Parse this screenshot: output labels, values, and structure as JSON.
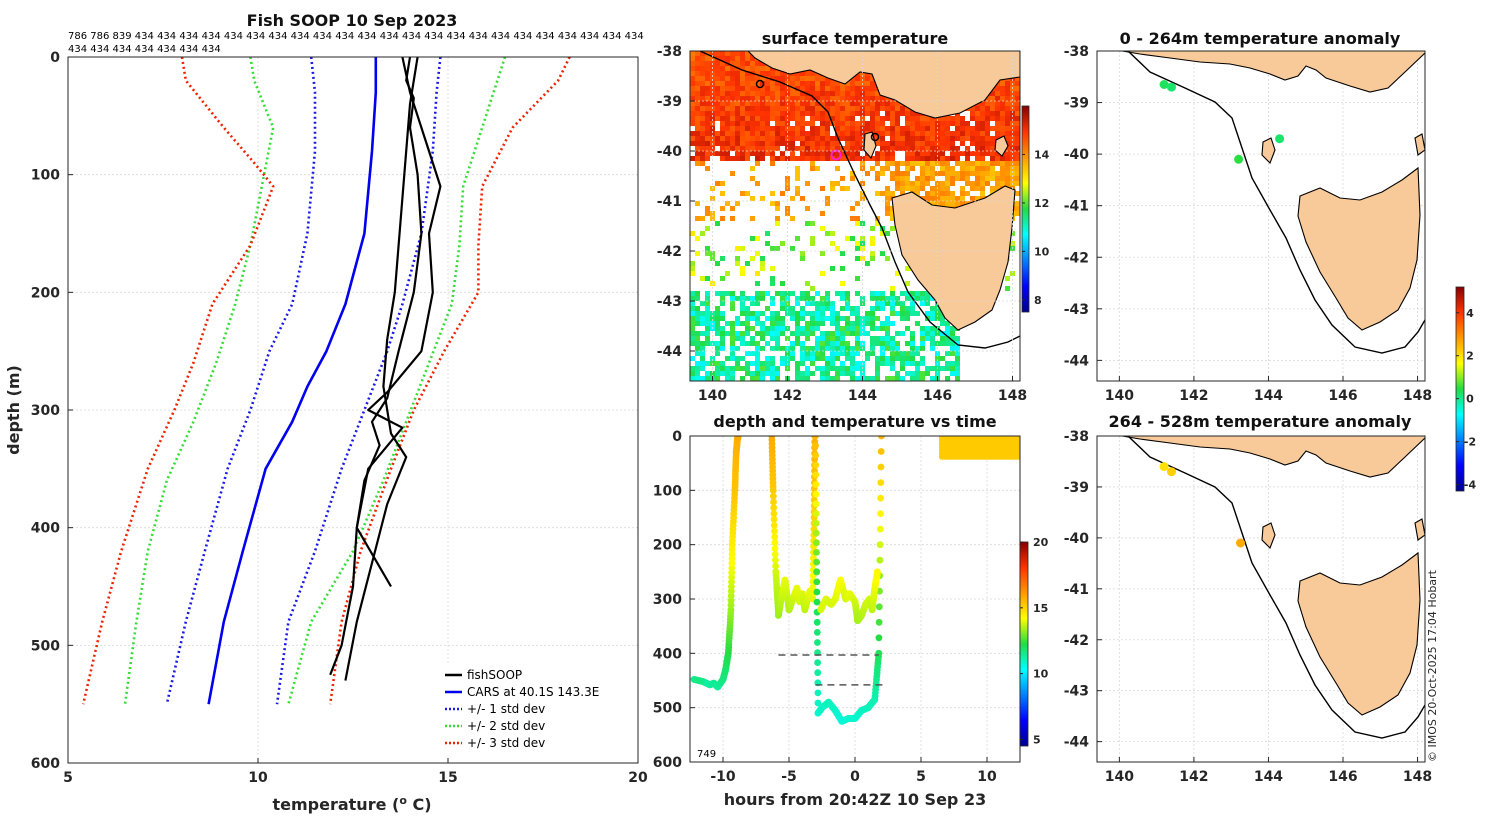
{
  "figure": {
    "credit": "© IMOS 20-Oct-2025 17:04 Hobart"
  },
  "chart_data": [
    {
      "id": "profile",
      "type": "line",
      "title": "Fish SOOP 10 Sep 2023",
      "count_labels_line1": "786 786 839 434 434 434 434 434 434 434 434 434 434 434 434 434 434 434 434 434 434 434 434 434 434 434",
      "count_labels_line2": "434 434 434 434 434 434 434",
      "xlabel": "temperature (",
      "xlabel_sup": "o",
      "xlabel_end": " C)",
      "ylabel": "depth (m)",
      "xlim": [
        5,
        20
      ],
      "ylim": [
        600,
        0
      ],
      "xticks": [
        "5",
        "10",
        "15",
        "20"
      ],
      "yticks": [
        "0",
        "100",
        "200",
        "300",
        "400",
        "500",
        "600"
      ],
      "legend": [
        "fishSOOP",
        "CARS at 40.1S 143.3E",
        "+/- 1 std dev",
        "+/- 2 std dev",
        "+/- 3 std dev"
      ],
      "colors": {
        "fishsoop": "#000000",
        "cars": "#0000ee",
        "std1": "#1a1ae6",
        "std2": "#33dd33",
        "std3": "#ee2200"
      },
      "series": [
        {
          "name": "CARS mean",
          "depth": [
            0,
            30,
            80,
            150,
            210,
            250,
            280,
            310,
            350,
            420,
            480,
            550
          ],
          "temp": [
            13.1,
            13.1,
            13.0,
            12.8,
            12.3,
            11.8,
            11.3,
            10.9,
            10.2,
            9.6,
            9.1,
            8.7
          ]
        },
        {
          "name": "+1 std",
          "depth": [
            0,
            30,
            80,
            150,
            210,
            250,
            300,
            350,
            420,
            480,
            550
          ],
          "temp": [
            14.8,
            14.7,
            14.6,
            14.3,
            13.8,
            13.4,
            12.8,
            12.2,
            11.5,
            10.8,
            10.5
          ]
        },
        {
          "name": "-1 std",
          "depth": [
            0,
            30,
            80,
            150,
            210,
            250,
            300,
            350,
            420,
            480,
            550
          ],
          "temp": [
            11.4,
            11.5,
            11.5,
            11.3,
            10.9,
            10.3,
            9.8,
            9.2,
            8.6,
            8.1,
            7.6
          ]
        },
        {
          "name": "+2 std",
          "depth": [
            0,
            20,
            60,
            110,
            160,
            210,
            260,
            310,
            360,
            420,
            480,
            550
          ],
          "temp": [
            16.5,
            16.3,
            15.9,
            15.4,
            15.3,
            15.1,
            14.5,
            13.9,
            13.3,
            12.5,
            11.4,
            10.8
          ]
        },
        {
          "name": "-2 std",
          "depth": [
            0,
            20,
            60,
            110,
            160,
            210,
            260,
            310,
            360,
            420,
            480,
            550
          ],
          "temp": [
            9.8,
            9.9,
            10.4,
            10.1,
            9.8,
            9.4,
            8.9,
            8.3,
            7.6,
            7.1,
            6.8,
            6.5
          ]
        },
        {
          "name": "+3 std",
          "depth": [
            0,
            20,
            60,
            110,
            160,
            200,
            250,
            300,
            350,
            420,
            480,
            550
          ],
          "temp": [
            18.2,
            17.9,
            16.7,
            15.9,
            15.8,
            15.8,
            14.9,
            14.1,
            13.5,
            12.7,
            12.2,
            11.9
          ]
        },
        {
          "name": "-3 std",
          "depth": [
            0,
            20,
            60,
            90,
            110,
            160,
            210,
            260,
            300,
            350,
            420,
            480,
            550
          ],
          "temp": [
            8.0,
            8.1,
            9.1,
            9.9,
            10.4,
            9.8,
            8.8,
            8.3,
            7.8,
            7.1,
            6.4,
            5.9,
            5.4
          ]
        },
        {
          "name": "fishSOOP A",
          "depth": [
            0,
            20,
            35,
            60,
            100,
            150,
            200,
            250,
            290,
            310,
            330,
            360,
            400,
            450,
            500,
            525
          ],
          "temp": [
            14.0,
            13.9,
            14.1,
            14.0,
            14.2,
            14.3,
            14.1,
            13.7,
            13.4,
            13.0,
            13.2,
            12.8,
            12.6,
            12.5,
            12.2,
            11.9
          ]
        },
        {
          "name": "fishSOOP B",
          "depth": [
            0,
            40,
            80,
            120,
            160,
            200,
            240,
            280,
            320,
            340,
            380,
            430,
            480,
            530
          ],
          "temp": [
            14.2,
            14.0,
            13.9,
            13.8,
            13.7,
            13.6,
            13.4,
            13.3,
            13.5,
            13.9,
            13.4,
            13.0,
            12.6,
            12.3
          ]
        },
        {
          "name": "fishSOOP C",
          "depth": [
            0,
            30,
            70,
            110,
            150,
            200,
            250,
            285,
            300,
            315,
            350,
            400,
            450
          ],
          "temp": [
            13.8,
            14.0,
            14.4,
            14.8,
            14.5,
            14.6,
            14.3,
            13.4,
            12.9,
            13.8,
            12.9,
            12.6,
            13.5
          ]
        }
      ]
    },
    {
      "id": "sst_map",
      "type": "heatmap",
      "title": "surface temperature",
      "xticks": [
        "140",
        "142",
        "144",
        "146",
        "148"
      ],
      "yticks": [
        "-38",
        "-39",
        "-40",
        "-41",
        "-42",
        "-43",
        "-44"
      ],
      "xlim": [
        139.4,
        148.2
      ],
      "ylim": [
        -44.6,
        -38
      ],
      "colorbar_ticks": [
        "8",
        "10",
        "12",
        "14"
      ],
      "colorbar_range": [
        7.5,
        16
      ]
    },
    {
      "id": "depth_time",
      "type": "scatter",
      "title": "depth and temperature vs time",
      "xlabel": "hours from 20:42Z 10 Sep 23",
      "xticks": [
        "-10",
        "-5",
        "0",
        "5",
        "10"
      ],
      "yticks": [
        "0",
        "100",
        "200",
        "300",
        "400",
        "500",
        "600"
      ],
      "xlim": [
        -12.5,
        12.5
      ],
      "ylim": [
        600,
        0
      ],
      "count_label": "749",
      "colorbar_ticks": [
        "5",
        "10",
        "15",
        "20"
      ],
      "colorbar_range": [
        4.5,
        20
      ],
      "track": {
        "hours": [
          -12.2,
          -11.5,
          -11.0,
          -10.7,
          -10.4,
          -10.0,
          -9.8,
          -9.6,
          -9.4,
          -9.3,
          -9.1,
          -9.0,
          -8.9,
          -8.85
        ],
        "depth": [
          448,
          452,
          458,
          455,
          462,
          448,
          430,
          400,
          320,
          200,
          100,
          30,
          5,
          0
        ],
        "temp": [
          11.5,
          11.6,
          11.2,
          11.5,
          11.3,
          11.6,
          11.8,
          12.2,
          13.3,
          14.5,
          15.3,
          15.6,
          15.7,
          15.8
        ]
      },
      "track2": {
        "hours": [
          -6.3,
          -6.2,
          -6.0,
          -5.8,
          -5.6,
          -5.3,
          -5.0,
          -4.7,
          -4.4,
          -4.2,
          -4.0,
          -3.8,
          -3.6,
          -3.4,
          -3.2,
          -3.1,
          -3.05
        ],
        "depth": [
          0,
          100,
          250,
          330,
          300,
          265,
          320,
          300,
          280,
          305,
          290,
          320,
          300,
          285,
          300,
          150,
          0
        ],
        "temp": [
          15.8,
          15.2,
          13.8,
          13.3,
          13.6,
          14.0,
          13.5,
          13.7,
          14.0,
          13.8,
          13.9,
          13.6,
          13.8,
          14.0,
          13.9,
          15.0,
          15.7
        ]
      },
      "track3": {
        "hours": [
          -3.0,
          -2.9,
          -2.8,
          -2.5,
          -2.0,
          -1.5,
          -1.0,
          -0.5,
          0.0,
          0.5,
          1.0,
          1.5,
          1.8,
          2.0
        ],
        "depth": [
          0,
          250,
          510,
          500,
          490,
          505,
          525,
          520,
          520,
          505,
          500,
          485,
          400,
          0
        ],
        "temp": [
          15.6,
          12.5,
          10.8,
          10.9,
          11.0,
          10.9,
          10.7,
          10.8,
          10.8,
          10.9,
          11.0,
          11.1,
          12.0,
          15.6
        ]
      },
      "track4": {
        "hours": [
          -2.6,
          -2.2,
          -1.8,
          -1.5,
          -1.1,
          -0.7,
          -0.4,
          0.0,
          0.2,
          0.5,
          0.8,
          1.1,
          1.3,
          1.5,
          1.7
        ],
        "depth": [
          320,
          300,
          310,
          300,
          265,
          300,
          290,
          305,
          340,
          330,
          310,
          300,
          320,
          280,
          250
        ],
        "temp": [
          13.8,
          13.9,
          13.8,
          13.9,
          14.2,
          13.8,
          14.0,
          13.8,
          13.4,
          13.5,
          13.7,
          13.8,
          13.6,
          14.0,
          14.3
        ]
      },
      "dashed_levels": [
        {
          "depth": 403,
          "from": -5.8,
          "to": 1.8
        },
        {
          "depth": 458,
          "from": -3.0,
          "to": 2.3
        }
      ]
    },
    {
      "id": "anom_upper",
      "type": "scatter",
      "title": "0 - 264m temperature anomaly",
      "xticks": [
        "140",
        "142",
        "144",
        "146",
        "148"
      ],
      "yticks": [
        "-38",
        "-39",
        "-40",
        "-41",
        "-42",
        "-43",
        "-44"
      ],
      "xlim": [
        139.4,
        148.2
      ],
      "ylim": [
        -44.4,
        -38
      ],
      "points": [
        {
          "lon": 141.2,
          "lat": -38.65,
          "anomaly": 0.3
        },
        {
          "lon": 141.4,
          "lat": -38.7,
          "anomaly": 0.2
        },
        {
          "lon": 143.2,
          "lat": -40.1,
          "anomaly": 0.5
        },
        {
          "lon": 144.3,
          "lat": -39.7,
          "anomaly": 0.2
        }
      ]
    },
    {
      "id": "anom_lower",
      "type": "scatter",
      "title": "264 - 528m temperature anomaly",
      "xticks": [
        "140",
        "142",
        "144",
        "146",
        "148"
      ],
      "yticks": [
        "-38",
        "-39",
        "-40",
        "-41",
        "-42",
        "-43",
        "-44"
      ],
      "xlim": [
        139.4,
        148.2
      ],
      "ylim": [
        -44.4,
        -38
      ],
      "colorbar_ticks": [
        "-4",
        "-2",
        "0",
        "2",
        "4"
      ],
      "colorbar_range": [
        -4.3,
        5.2
      ],
      "points": [
        {
          "lon": 141.2,
          "lat": -38.6,
          "anomaly": 2.0
        },
        {
          "lon": 141.4,
          "lat": -38.7,
          "anomaly": 2.2
        },
        {
          "lon": 143.25,
          "lat": -40.1,
          "anomaly": 2.6
        }
      ]
    }
  ]
}
